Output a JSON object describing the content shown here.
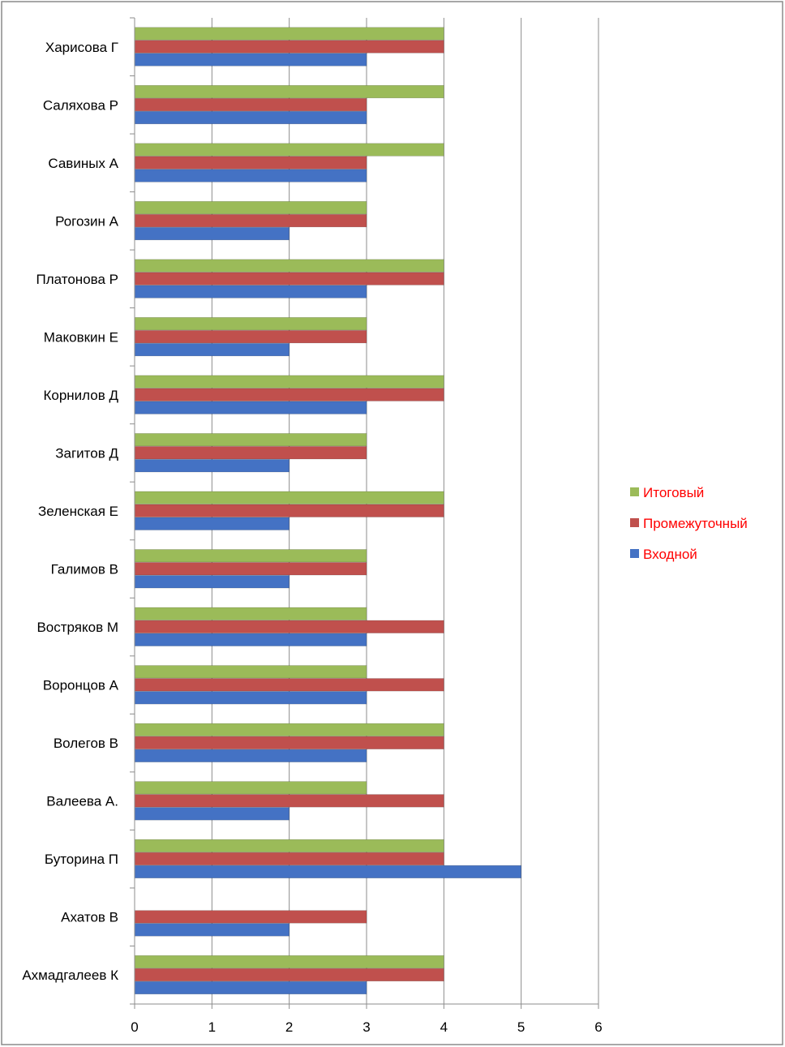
{
  "chart_data": {
    "type": "bar",
    "orientation": "horizontal",
    "categories": [
      "Ахмадгалеев К",
      "Ахатов В",
      "Буторина П",
      "Валеева А.",
      "Волегов В",
      "Воронцов А",
      "Востряков М",
      "Галимов В",
      "Зеленская Е",
      "Загитов Д",
      "Корнилов Д",
      "Маковкин Е",
      "Платонова Р",
      "Рогозин А",
      "Савиных А",
      "Саляхова Р",
      "Харисова Г"
    ],
    "series": [
      {
        "name": "Входной",
        "color": "#4472C4",
        "values": [
          3,
          2,
          5,
          2,
          3,
          3,
          3,
          2,
          2,
          2,
          3,
          2,
          3,
          2,
          3,
          3,
          3
        ]
      },
      {
        "name": "Промежуточный",
        "color": "#C0504D",
        "values": [
          4,
          3,
          4,
          4,
          4,
          4,
          4,
          3,
          4,
          3,
          4,
          3,
          4,
          3,
          3,
          3,
          4
        ]
      },
      {
        "name": "Итоговый",
        "color": "#9BBB59",
        "values": [
          4,
          0,
          4,
          3,
          4,
          3,
          3,
          3,
          4,
          3,
          4,
          3,
          4,
          3,
          4,
          4,
          4
        ]
      }
    ],
    "xlim": [
      0,
      6
    ],
    "x_ticks": [
      "0",
      "1",
      "2",
      "3",
      "4",
      "5",
      "6"
    ],
    "grid": true,
    "legend_position": "right",
    "legend_text_color": "#FF0000",
    "legend_order": [
      "Итоговый",
      "Промежуточный",
      "Входной"
    ]
  }
}
